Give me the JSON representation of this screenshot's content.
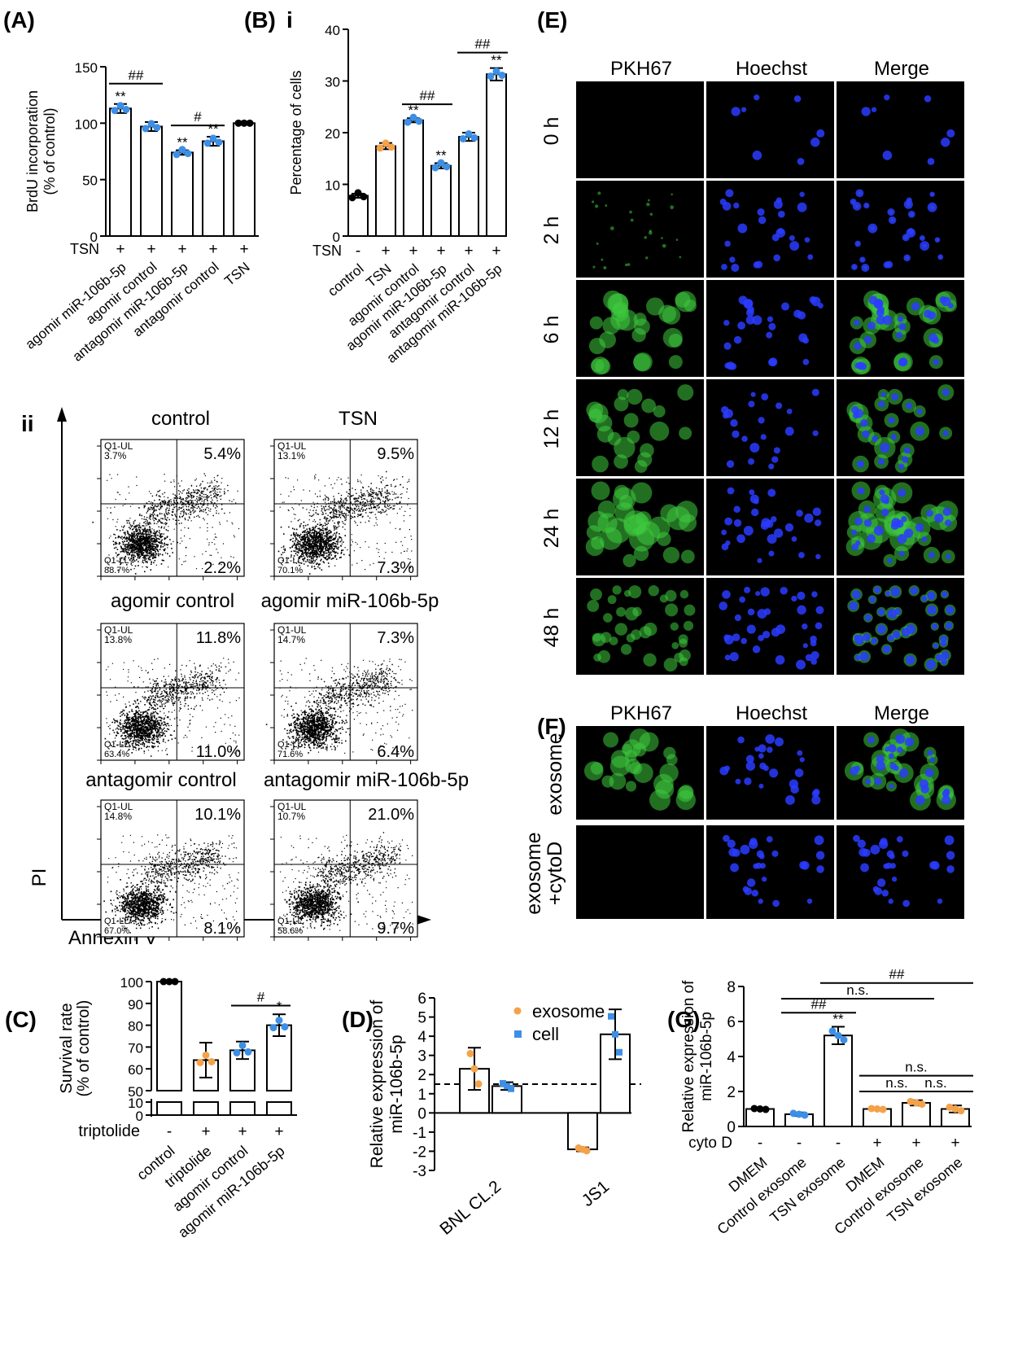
{
  "panels": {
    "A": "(A)",
    "B": "(B)",
    "Bi": "i",
    "Bii": "ii",
    "C": "(C)",
    "D": "(D)",
    "E": "(E)",
    "F": "(F)",
    "G": "(G)"
  },
  "colors": {
    "orange": "#f4a24a",
    "blue": "#3d8fe6",
    "black": "#000000",
    "green_signal": "#3ecb3e",
    "blue_signal": "#2a3cff"
  },
  "chart_data": [
    {
      "id": "A",
      "type": "bar",
      "ylabel": "BrdU incorporation (% of control)",
      "ylabel_lines": [
        "BrdU incorporation",
        "(% of control)"
      ],
      "ylim": [
        0,
        150
      ],
      "yticks": [
        0,
        50,
        100,
        150
      ],
      "row_label": "TSN",
      "row_marks": [
        "+",
        "+",
        "+",
        "+",
        "+"
      ],
      "categories": [
        "agomir miR-106b-5p",
        "agomir control",
        "antagomir miR-106b-5p",
        "antagomir control",
        "TSN"
      ],
      "values": [
        113,
        97,
        74,
        84,
        100
      ],
      "errors": [
        4,
        4,
        2,
        4,
        0
      ],
      "point_colors": [
        "blue",
        "blue",
        "blue",
        "blue",
        "black"
      ],
      "annotations_above_bar": [
        "**",
        "",
        "**",
        "**",
        ""
      ],
      "brackets": [
        {
          "from": 0,
          "to": 1,
          "y": 135,
          "label": "##"
        },
        {
          "from": 2,
          "to": 3,
          "y": 98,
          "label": "#"
        }
      ]
    },
    {
      "id": "Bi",
      "type": "bar",
      "ylabel": "Percentage of cells",
      "ylim": [
        0,
        40
      ],
      "yticks": [
        0,
        10,
        20,
        30,
        40
      ],
      "row_label": "TSN",
      "row_marks": [
        "-",
        "+",
        "+",
        "+",
        "+",
        "+"
      ],
      "categories": [
        "control",
        "TSN",
        "agomir control",
        "agomir miR-106b-5p",
        "antagomir control",
        "antagomir miR-106b-5p"
      ],
      "values": [
        7.8,
        17.4,
        22.4,
        13.6,
        19.2,
        31.3
      ],
      "errors": [
        0.4,
        0.6,
        0.4,
        0.5,
        0.8,
        1.2
      ],
      "point_colors": [
        "black",
        "orange",
        "blue",
        "blue",
        "blue",
        "blue"
      ],
      "annotations_above_bar": [
        "",
        "",
        "**",
        "**",
        "",
        "**"
      ],
      "brackets": [
        {
          "from": 2,
          "to": 3,
          "y": 25.5,
          "label": "##"
        },
        {
          "from": 4,
          "to": 5,
          "y": 35.5,
          "label": "##"
        }
      ]
    },
    {
      "id": "C",
      "type": "bar",
      "ylabel": "Survival rate (% of control)",
      "ylabel_lines": [
        "Survival rate",
        "(% of control)"
      ],
      "ylim": [
        50,
        100
      ],
      "yticks": [
        50,
        60,
        70,
        80,
        90,
        100
      ],
      "broken_axis_ticks": [
        0,
        10
      ],
      "row_label": "triptolide",
      "row_marks": [
        "-",
        "+",
        "+",
        "+"
      ],
      "categories": [
        "control",
        "triptolide",
        "agomir control",
        "agomir miR-106b-5p"
      ],
      "values": [
        100,
        64,
        68.5,
        80
      ],
      "errors": [
        0,
        8,
        4,
        5
      ],
      "point_colors": [
        "black",
        "orange",
        "blue",
        "blue"
      ],
      "annotations_above_bar": [
        "",
        "",
        "",
        "*"
      ],
      "brackets": [
        {
          "from": 2,
          "to": 3,
          "y": 89,
          "label": "#"
        }
      ]
    },
    {
      "id": "D",
      "type": "bar",
      "ylabel": "Relative expression of miR-106b-5p",
      "ylabel_lines": [
        "Relative expression of",
        "miR-106b-5p"
      ],
      "ylim": [
        -3,
        6
      ],
      "yticks": [
        -3,
        -2,
        -1,
        0,
        1,
        2,
        3,
        4,
        5,
        6
      ],
      "categories": [
        "BNL CL.2",
        "JS1"
      ],
      "series": [
        {
          "name": "exosome",
          "color": "orange",
          "values": [
            2.3,
            -1.9
          ],
          "errors": [
            1.1,
            0.1
          ]
        },
        {
          "name": "cell",
          "color": "blue",
          "values": [
            1.4,
            4.1
          ],
          "errors": [
            0.2,
            1.3
          ]
        }
      ],
      "reference_line": 1.5,
      "legend": "top-right"
    },
    {
      "id": "G",
      "type": "bar",
      "ylabel": "Relative expression of miR-106b-5p",
      "ylabel_lines": [
        "Relative expression of",
        "miR-106b-5p"
      ],
      "ylim": [
        0,
        8
      ],
      "yticks": [
        0,
        2,
        4,
        6,
        8
      ],
      "row_label": "cyto D",
      "row_marks": [
        "-",
        "-",
        "-",
        "+",
        "+",
        "+"
      ],
      "categories": [
        "DMEM",
        "Control exosome",
        "TSN exosome",
        "DMEM",
        "Control exosome",
        "TSN exosome"
      ],
      "values": [
        1.0,
        0.7,
        5.2,
        1.0,
        1.35,
        1.0
      ],
      "errors": [
        0.05,
        0.1,
        0.5,
        0.05,
        0.15,
        0.2
      ],
      "point_colors": [
        "black",
        "blue",
        "blue",
        "orange",
        "orange",
        "orange"
      ],
      "annotations_above_bar": [
        "",
        "",
        "**",
        "",
        "",
        ""
      ],
      "brackets": [
        {
          "from": 1,
          "to": 2,
          "y": 6.5,
          "label": "##"
        },
        {
          "from": 1,
          "to": 4,
          "y": 7.3,
          "label": "n.s."
        },
        {
          "from": 2,
          "to": 5,
          "y": 8.2,
          "label": "##"
        },
        {
          "from": 3,
          "to": 4,
          "y": 2.0,
          "label": "n.s."
        },
        {
          "from": 4,
          "to": 5,
          "y": 2.0,
          "label": "n.s."
        },
        {
          "from": 3,
          "to": 5,
          "y": 2.9,
          "label": "n.s."
        }
      ]
    }
  ],
  "flow": {
    "y_axis_label": "PI",
    "x_axis_label": "Annexin V",
    "gate_label": "Q1-UL",
    "lr_label": "Q1-LL",
    "plots": [
      {
        "title": "control",
        "ul": "3.7%",
        "ur": "5.4%",
        "lr": "2.2%",
        "ll": "88.7%"
      },
      {
        "title": "TSN",
        "ul": "13.1%",
        "ur": "9.5%",
        "lr": "7.3%",
        "ll": "70.1%"
      },
      {
        "title": "agomir control",
        "ul": "13.8%",
        "ur": "11.8%",
        "lr": "11.0%",
        "ll": "63.4%"
      },
      {
        "title": "agomir miR-106b-5p",
        "ul": "14.7%",
        "ur": "7.3%",
        "lr": "6.4%",
        "ll": "71.6%"
      },
      {
        "title": "antagomir control",
        "ul": "14.8%",
        "ur": "10.1%",
        "lr": "8.1%",
        "ll": "67.0%"
      },
      {
        "title": "antagomir miR-106b-5p",
        "ul": "10.7%",
        "ur": "21.0%",
        "lr": "9.7%",
        "ll": "58.6%"
      }
    ]
  },
  "micrographs_E": {
    "columns": [
      "PKH67",
      "Hoechst",
      "Merge"
    ],
    "rows": [
      "0 h",
      "2 h",
      "6 h",
      "12 h",
      "24 h",
      "48 h"
    ]
  },
  "micrographs_F": {
    "columns": [
      "PKH67",
      "Hoechst",
      "Merge"
    ],
    "rows": [
      "exosome",
      "exosome\n+cytoD"
    ],
    "row_lines": [
      [
        "exosome"
      ],
      [
        "exosome",
        "+cytoD"
      ]
    ]
  }
}
